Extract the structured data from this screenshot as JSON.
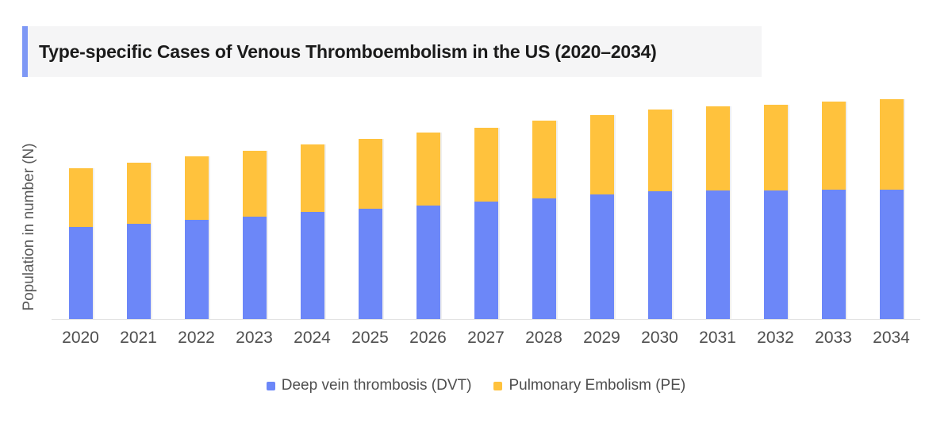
{
  "header": {
    "title": "Type-specific Cases of Venous Thromboembolism in the US (2020–2034)",
    "accent_color": "#7E98F5",
    "background_color": "#F5F5F6"
  },
  "chart_data": {
    "type": "bar",
    "stacked": true,
    "title": "Type-specific Cases of Venous Thromboembolism in the US (2020–2034)",
    "xlabel": "",
    "ylabel": "Population in number (N)",
    "categories": [
      "2020",
      "2021",
      "2022",
      "2023",
      "2024",
      "2025",
      "2026",
      "2027",
      "2028",
      "2029",
      "2030",
      "2031",
      "2032",
      "2033",
      "2034"
    ],
    "series": [
      {
        "name": "Deep vein thrombosis (DVT)",
        "color": "#6C87F8",
        "values": [
          116,
          120,
          125,
          129,
          135,
          139,
          143,
          148,
          152,
          157,
          161,
          162,
          162,
          163,
          163
        ]
      },
      {
        "name": "Pulmonary Embolism (PE)",
        "color": "#FFC23D",
        "values": [
          74,
          77,
          80,
          83,
          85,
          88,
          92,
          93,
          98,
          100,
          103,
          106,
          108,
          111,
          114
        ]
      }
    ],
    "ylim": [
      0,
      300
    ],
    "y_axis_tick_labels_visible": false,
    "grid": false,
    "legend_position": "bottom",
    "note": "No numeric y-axis ticks shown; values are relative units estimated from bar heights"
  },
  "colors": {
    "axis_line": "#E3E3E3",
    "tick_text": "#4F4F4F",
    "legend_text": "#4D4D4D"
  }
}
